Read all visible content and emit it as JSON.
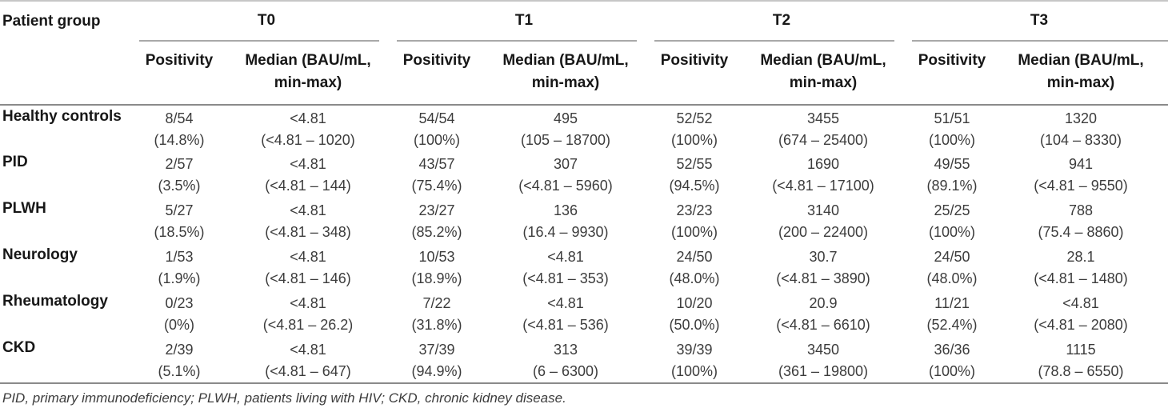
{
  "table": {
    "patient_group_header": "Patient group",
    "timepoints": [
      {
        "label": "T0"
      },
      {
        "label": "T1"
      },
      {
        "label": "T2"
      },
      {
        "label": "T3"
      }
    ],
    "sub_headers": {
      "positivity": "Positivity",
      "median_line1": "Median (BAU/mL,",
      "median_line2": "min-max)"
    },
    "rows": [
      {
        "group": "Healthy controls",
        "cells": [
          {
            "pos": "8/54",
            "pos_pct": "(14.8%)",
            "med": "<4.81",
            "med_range": "(<4.81 – 1020)"
          },
          {
            "pos": "54/54",
            "pos_pct": "(100%)",
            "med": "495",
            "med_range": "(105 – 18700)"
          },
          {
            "pos": "52/52",
            "pos_pct": "(100%)",
            "med": "3455",
            "med_range": "(674 – 25400)"
          },
          {
            "pos": "51/51",
            "pos_pct": "(100%)",
            "med": "1320",
            "med_range": "(104 – 8330)"
          }
        ]
      },
      {
        "group": "PID",
        "cells": [
          {
            "pos": "2/57",
            "pos_pct": "(3.5%)",
            "med": "<4.81",
            "med_range": "(<4.81 – 144)"
          },
          {
            "pos": "43/57",
            "pos_pct": "(75.4%)",
            "med": "307",
            "med_range": "(<4.81 – 5960)"
          },
          {
            "pos": "52/55",
            "pos_pct": "(94.5%)",
            "med": "1690",
            "med_range": "(<4.81 – 17100)"
          },
          {
            "pos": "49/55",
            "pos_pct": "(89.1%)",
            "med": "941",
            "med_range": "(<4.81 – 9550)"
          }
        ]
      },
      {
        "group": "PLWH",
        "cells": [
          {
            "pos": "5/27",
            "pos_pct": "(18.5%)",
            "med": "<4.81",
            "med_range": "(<4.81 – 348)"
          },
          {
            "pos": "23/27",
            "pos_pct": "(85.2%)",
            "med": "136",
            "med_range": "(16.4 – 9930)"
          },
          {
            "pos": "23/23",
            "pos_pct": "(100%)",
            "med": "3140",
            "med_range": "(200 – 22400)"
          },
          {
            "pos": "25/25",
            "pos_pct": "(100%)",
            "med": "788",
            "med_range": "(75.4 – 8860)"
          }
        ]
      },
      {
        "group": "Neurology",
        "cells": [
          {
            "pos": "1/53",
            "pos_pct": "(1.9%)",
            "med": "<4.81",
            "med_range": "(<4.81 – 146)"
          },
          {
            "pos": "10/53",
            "pos_pct": "(18.9%)",
            "med": "<4.81",
            "med_range": "(<4.81 – 353)"
          },
          {
            "pos": "24/50",
            "pos_pct": "(48.0%)",
            "med": "30.7",
            "med_range": "(<4.81 – 3890)"
          },
          {
            "pos": "24/50",
            "pos_pct": "(48.0%)",
            "med": "28.1",
            "med_range": "(<4.81 – 1480)"
          }
        ]
      },
      {
        "group": "Rheumatology",
        "cells": [
          {
            "pos": "0/23",
            "pos_pct": "(0%)",
            "med": "<4.81",
            "med_range": "(<4.81 – 26.2)"
          },
          {
            "pos": "7/22",
            "pos_pct": "(31.8%)",
            "med": "<4.81",
            "med_range": "(<4.81 – 536)"
          },
          {
            "pos": "10/20",
            "pos_pct": "(50.0%)",
            "med": "20.9",
            "med_range": "(<4.81 – 6610)"
          },
          {
            "pos": "11/21",
            "pos_pct": "(52.4%)",
            "med": "<4.81",
            "med_range": "(<4.81 – 2080)"
          }
        ]
      },
      {
        "group": "CKD",
        "cells": [
          {
            "pos": "2/39",
            "pos_pct": "(5.1%)",
            "med": "<4.81",
            "med_range": "(<4.81 – 647)"
          },
          {
            "pos": "37/39",
            "pos_pct": "(94.9%)",
            "med": "313",
            "med_range": "(6 – 6300)"
          },
          {
            "pos": "39/39",
            "pos_pct": "(100%)",
            "med": "3450",
            "med_range": "(361 – 19800)"
          },
          {
            "pos": "36/36",
            "pos_pct": "(100%)",
            "med": "1115",
            "med_range": "(78.8 – 6550)"
          }
        ]
      }
    ],
    "footnote": "PID, primary immunodeficiency; PLWH, patients living with HIV; CKD, chronic kidney disease."
  }
}
